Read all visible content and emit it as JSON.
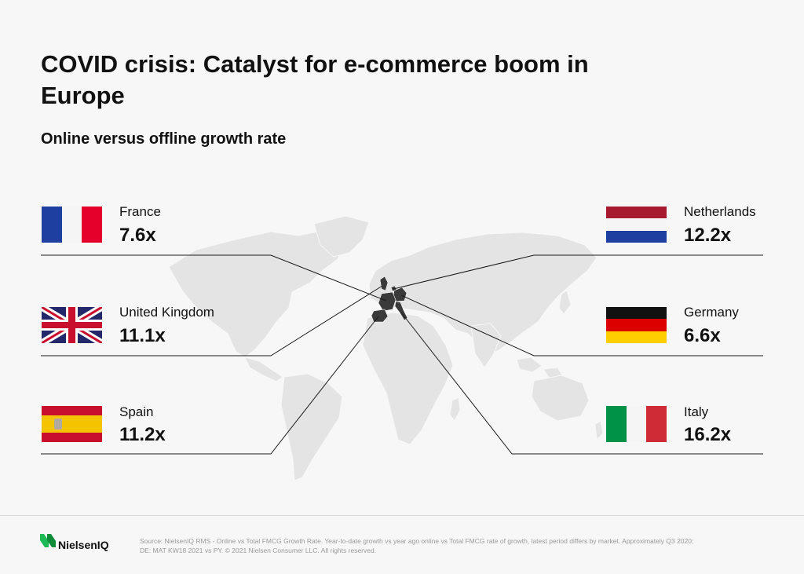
{
  "header": {
    "title": "COVID crisis: Catalyst for e-commerce boom in Europe",
    "subtitle": "Online versus offline growth rate"
  },
  "countries": [
    {
      "name": "France",
      "value": "7.6x",
      "flag": "france-flag"
    },
    {
      "name": "United Kingdom",
      "value": "11.1x",
      "flag": "uk-flag"
    },
    {
      "name": "Spain",
      "value": "11.2x",
      "flag": "spain-flag"
    },
    {
      "name": "Netherlands",
      "value": "12.2x",
      "flag": "netherlands-flag"
    },
    {
      "name": "Germany",
      "value": "6.6x",
      "flag": "germany-flag"
    },
    {
      "name": "Italy",
      "value": "16.2x",
      "flag": "italy-flag"
    }
  ],
  "footer": {
    "logo_text": "NielsenIQ",
    "source": "Source: NielsenIQ RMS - Online vs Total FMCG Growth Rate. Year-to-date growth vs year ago online vs Total FMCG rate of growth, latest period differs by market. Approximately Q3 2020; DE: MAT KW18 2021 vs PY. © 2021 Nielsen Consumer LLC. All rights reserved."
  },
  "colors": {
    "map_land": "#e4e4e4",
    "europe_highlight": "#3a3a3a",
    "connector": "#1a1a1a",
    "brand_green": "#1db954"
  }
}
